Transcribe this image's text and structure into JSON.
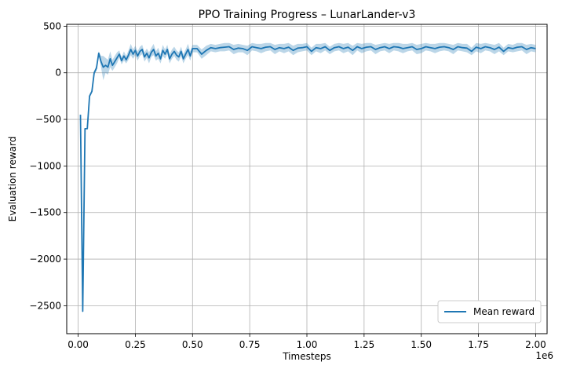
{
  "chart_data": {
    "type": "line",
    "title": "PPO Training Progress – LunarLander-v3",
    "xlabel": "Timesteps",
    "ylabel": "Evaluation reward",
    "x_offset_label": "1e6",
    "xlim": [
      -0.05,
      2.05
    ],
    "ylim": [
      -2800,
      520
    ],
    "x_ticks": [
      0.0,
      0.25,
      0.5,
      0.75,
      1.0,
      1.25,
      1.5,
      1.75,
      2.0
    ],
    "x_tick_labels": [
      "0.00",
      "0.25",
      "0.50",
      "0.75",
      "1.00",
      "1.25",
      "1.50",
      "1.75",
      "2.00"
    ],
    "y_ticks": [
      500,
      0,
      -500,
      -1000,
      -1500,
      -2000,
      -2500
    ],
    "y_tick_labels": [
      "500",
      "0",
      "−500",
      "−1000",
      "−1500",
      "−2000",
      "−2500"
    ],
    "grid": true,
    "legend_position": "lower-right",
    "colors": {
      "line": "#1f77b4",
      "band": "#1f77b4",
      "grid": "#b0b0b0"
    },
    "series": [
      {
        "name": "Mean reward",
        "x": [
          0.01,
          0.02,
          0.03,
          0.04,
          0.05,
          0.06,
          0.07,
          0.08,
          0.09,
          0.1,
          0.11,
          0.12,
          0.13,
          0.14,
          0.15,
          0.16,
          0.17,
          0.18,
          0.19,
          0.2,
          0.21,
          0.22,
          0.23,
          0.24,
          0.25,
          0.26,
          0.27,
          0.28,
          0.29,
          0.3,
          0.31,
          0.32,
          0.33,
          0.34,
          0.35,
          0.36,
          0.37,
          0.38,
          0.39,
          0.4,
          0.41,
          0.42,
          0.43,
          0.44,
          0.45,
          0.46,
          0.47,
          0.48,
          0.49,
          0.5,
          0.52,
          0.54,
          0.56,
          0.58,
          0.6,
          0.62,
          0.64,
          0.66,
          0.68,
          0.7,
          0.72,
          0.74,
          0.76,
          0.78,
          0.8,
          0.82,
          0.84,
          0.86,
          0.88,
          0.9,
          0.92,
          0.94,
          0.96,
          0.98,
          1.0,
          1.02,
          1.04,
          1.06,
          1.08,
          1.1,
          1.12,
          1.14,
          1.16,
          1.18,
          1.2,
          1.22,
          1.24,
          1.26,
          1.28,
          1.3,
          1.32,
          1.34,
          1.36,
          1.38,
          1.4,
          1.42,
          1.44,
          1.46,
          1.48,
          1.5,
          1.52,
          1.54,
          1.56,
          1.58,
          1.6,
          1.62,
          1.64,
          1.66,
          1.68,
          1.7,
          1.72,
          1.74,
          1.76,
          1.78,
          1.8,
          1.82,
          1.84,
          1.86,
          1.88,
          1.9,
          1.92,
          1.94,
          1.96,
          1.98,
          2.0
        ],
        "y": [
          -450,
          -2560,
          -600,
          -600,
          -250,
          -200,
          0,
          50,
          210,
          120,
          60,
          80,
          60,
          150,
          80,
          120,
          160,
          200,
          130,
          180,
          140,
          190,
          250,
          200,
          240,
          180,
          230,
          250,
          170,
          210,
          160,
          220,
          250,
          180,
          210,
          150,
          240,
          200,
          250,
          150,
          200,
          230,
          190,
          170,
          230,
          150,
          200,
          250,
          180,
          260,
          260,
          200,
          240,
          270,
          260,
          270,
          275,
          280,
          250,
          265,
          260,
          240,
          280,
          270,
          260,
          275,
          280,
          250,
          270,
          260,
          275,
          240,
          265,
          270,
          280,
          230,
          270,
          260,
          280,
          240,
          270,
          280,
          260,
          275,
          240,
          280,
          260,
          275,
          280,
          250,
          270,
          280,
          260,
          280,
          275,
          260,
          270,
          280,
          250,
          260,
          280,
          270,
          260,
          275,
          280,
          270,
          250,
          280,
          270,
          265,
          230,
          275,
          260,
          280,
          270,
          250,
          275,
          230,
          270,
          260,
          275,
          280,
          250,
          270,
          260
        ],
        "lower": [
          -450,
          -2560,
          -600,
          -600,
          -270,
          -220,
          -20,
          20,
          190,
          60,
          -80,
          0,
          -20,
          60,
          20,
          60,
          100,
          160,
          90,
          130,
          100,
          140,
          190,
          150,
          190,
          130,
          180,
          200,
          120,
          160,
          100,
          170,
          190,
          130,
          150,
          100,
          180,
          150,
          200,
          100,
          150,
          180,
          140,
          120,
          180,
          100,
          150,
          190,
          130,
          220,
          220,
          150,
          190,
          230,
          220,
          230,
          230,
          240,
          200,
          220,
          220,
          190,
          240,
          230,
          210,
          230,
          240,
          200,
          230,
          210,
          230,
          190,
          220,
          230,
          240,
          190,
          230,
          210,
          240,
          200,
          230,
          240,
          210,
          230,
          190,
          240,
          210,
          230,
          240,
          200,
          230,
          240,
          210,
          240,
          230,
          210,
          230,
          240,
          200,
          210,
          240,
          230,
          210,
          230,
          240,
          230,
          200,
          240,
          230,
          220,
          190,
          230,
          210,
          240,
          230,
          200,
          230,
          190,
          230,
          220,
          230,
          240,
          200,
          230,
          220
        ],
        "upper": [
          -450,
          -2560,
          -600,
          -600,
          -230,
          -180,
          20,
          80,
          230,
          180,
          180,
          160,
          140,
          230,
          140,
          180,
          220,
          240,
          170,
          230,
          180,
          240,
          310,
          250,
          290,
          230,
          280,
          300,
          220,
          260,
          220,
          270,
          310,
          230,
          270,
          200,
          300,
          250,
          300,
          200,
          250,
          280,
          240,
          220,
          280,
          200,
          250,
          310,
          230,
          300,
          300,
          250,
          290,
          310,
          300,
          310,
          320,
          320,
          300,
          310,
          300,
          290,
          320,
          310,
          310,
          320,
          320,
          300,
          310,
          310,
          320,
          290,
          310,
          310,
          320,
          270,
          310,
          310,
          320,
          280,
          310,
          320,
          310,
          320,
          290,
          320,
          310,
          320,
          320,
          300,
          310,
          320,
          310,
          320,
          320,
          310,
          310,
          320,
          300,
          310,
          320,
          310,
          310,
          320,
          320,
          310,
          300,
          320,
          310,
          310,
          270,
          320,
          310,
          320,
          310,
          300,
          320,
          270,
          310,
          300,
          320,
          320,
          300,
          310,
          300
        ]
      }
    ]
  }
}
